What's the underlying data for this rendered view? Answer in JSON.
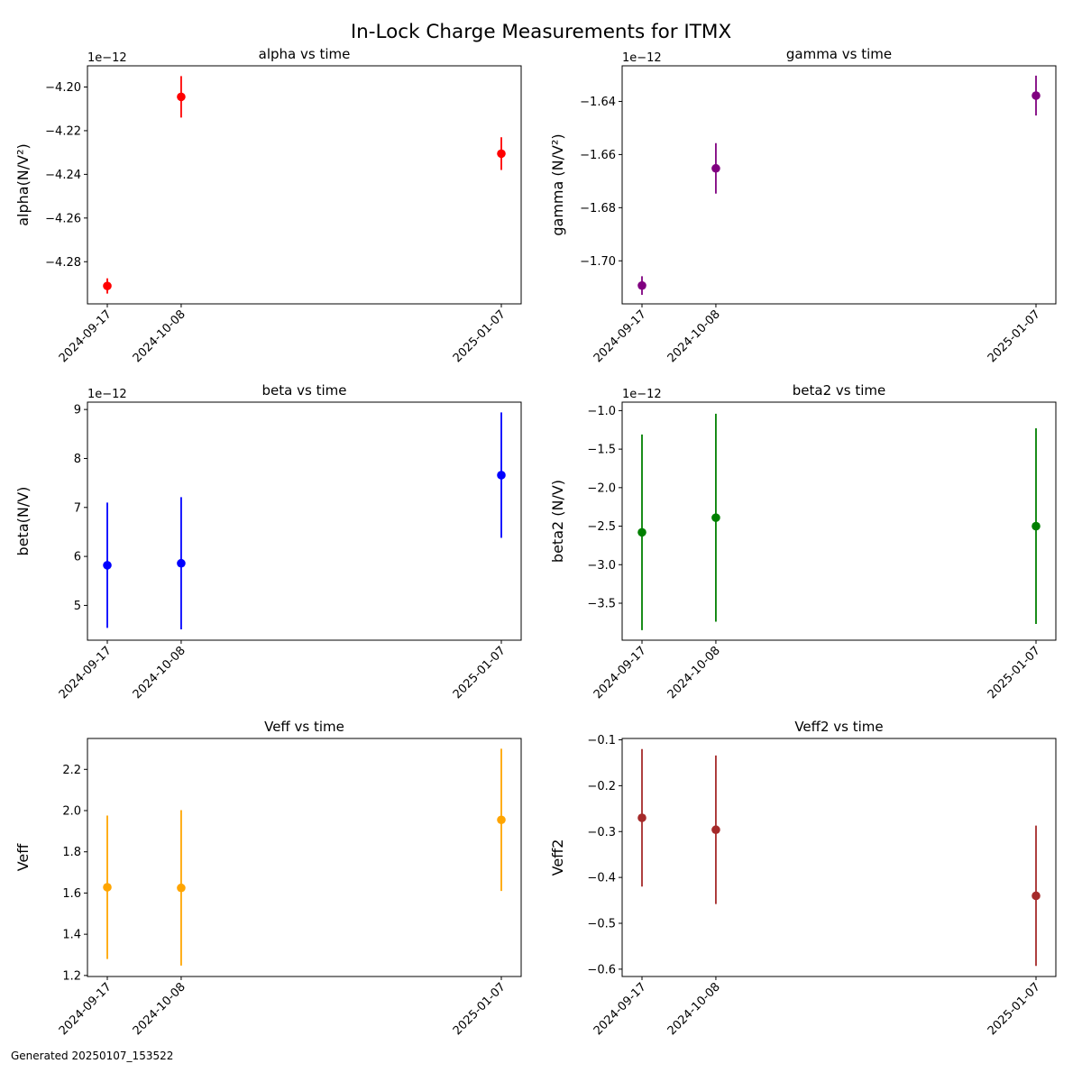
{
  "suptitle": "In-Lock Charge Measurements for ITMX",
  "footer": "Generated 20250107_153522",
  "chart_data": [
    {
      "type": "scatter",
      "title": "alpha vs time",
      "ylabel": "alpha(N/V²)",
      "offset": "1e−12",
      "color": "#ff0000",
      "x": [
        "2024-09-17",
        "2024-10-08",
        "2025-01-07"
      ],
      "y": [
        -4.2911,
        -4.2045,
        -4.2305
      ],
      "yerr": [
        0.0035,
        0.0095,
        0.0075
      ],
      "ylim": [
        -4.2993,
        -4.1903
      ],
      "yticks": [
        -4.28,
        -4.26,
        -4.24,
        -4.22,
        -4.2
      ],
      "ytick_labels": [
        "−4.28",
        "−4.26",
        "−4.24",
        "−4.22",
        "−4.20"
      ]
    },
    {
      "type": "scatter",
      "title": "gamma vs time",
      "ylabel": "gamma (N/V²)",
      "offset": "1e−12",
      "color": "#800080",
      "x": [
        "2024-09-17",
        "2024-10-08",
        "2025-01-07"
      ],
      "y": [
        -1.7093,
        -1.6652,
        -1.6378
      ],
      "yerr": [
        0.0035,
        0.0095,
        0.0075
      ],
      "ylim": [
        -1.7162,
        -1.6266
      ],
      "yticks": [
        -1.7,
        -1.68,
        -1.66,
        -1.64
      ],
      "ytick_labels": [
        "−1.70",
        "−1.68",
        "−1.66",
        "−1.64"
      ]
    },
    {
      "type": "scatter",
      "title": "beta vs time",
      "ylabel": "beta(N/V)",
      "offset": "1e−12",
      "color": "#0000ff",
      "x": [
        "2024-09-17",
        "2024-10-08",
        "2025-01-07"
      ],
      "y": [
        5.82,
        5.86,
        7.66
      ],
      "yerr": [
        1.28,
        1.35,
        1.28
      ],
      "ylim": [
        4.29,
        9.15
      ],
      "yticks": [
        5,
        6,
        7,
        8,
        9
      ],
      "ytick_labels": [
        "5",
        "6",
        "7",
        "8",
        "9"
      ]
    },
    {
      "type": "scatter",
      "title": "beta2 vs time",
      "ylabel": "beta2 (N/V)",
      "offset": "1e−12",
      "color": "#008000",
      "x": [
        "2024-09-17",
        "2024-10-08",
        "2025-01-07"
      ],
      "y": [
        -2.58,
        -2.39,
        -2.5
      ],
      "yerr": [
        1.27,
        1.35,
        1.27
      ],
      "ylim": [
        -3.98,
        -0.89
      ],
      "yticks": [
        -3.5,
        -3.0,
        -2.5,
        -2.0,
        -1.5,
        -1.0
      ],
      "ytick_labels": [
        "−3.5",
        "−3.0",
        "−2.5",
        "−2.0",
        "−1.5",
        "−1.0"
      ]
    },
    {
      "type": "scatter",
      "title": "Veff vs time",
      "ylabel": "Veff",
      "offset": "",
      "color": "#ffa500",
      "x": [
        "2024-09-17",
        "2024-10-08",
        "2025-01-07"
      ],
      "y": [
        1.628,
        1.625,
        1.955
      ],
      "yerr": [
        0.348,
        0.377,
        0.345
      ],
      "ylim": [
        1.195,
        2.35
      ],
      "yticks": [
        1.2,
        1.4,
        1.6,
        1.8,
        2.0,
        2.2
      ],
      "ytick_labels": [
        "1.2",
        "1.4",
        "1.6",
        "1.8",
        "2.0",
        "2.2"
      ]
    },
    {
      "type": "scatter",
      "title": "Veff2 vs time",
      "ylabel": "Veff2",
      "offset": "",
      "color": "#a52a2a",
      "x": [
        "2024-09-17",
        "2024-10-08",
        "2025-01-07"
      ],
      "y": [
        -0.27,
        -0.296,
        -0.44
      ],
      "yerr": [
        0.15,
        0.162,
        0.153
      ],
      "ylim": [
        -0.616,
        -0.097
      ],
      "yticks": [
        -0.6,
        -0.5,
        -0.4,
        -0.3,
        -0.2,
        -0.1
      ],
      "ytick_labels": [
        "−0.6",
        "−0.5",
        "−0.4",
        "−0.3",
        "−0.2",
        "−0.1"
      ]
    }
  ]
}
